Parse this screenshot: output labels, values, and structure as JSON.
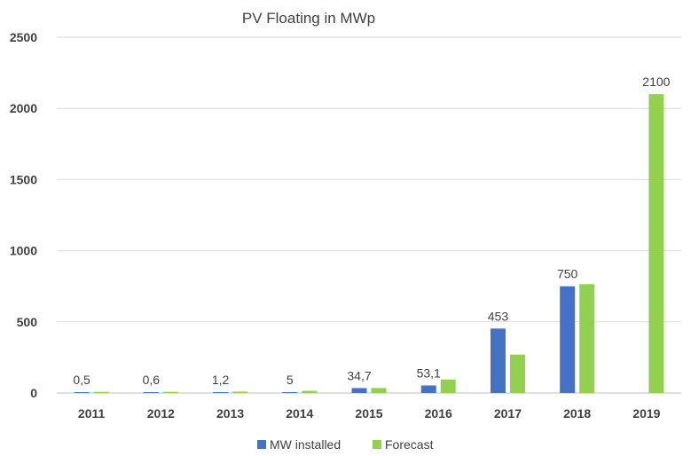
{
  "chart_data": {
    "type": "bar",
    "title": "PV Floating in MWp",
    "categories": [
      "2011",
      "2012",
      "2013",
      "2014",
      "2015",
      "2016",
      "2017",
      "2018",
      "2019"
    ],
    "series": [
      {
        "name": "MW installed",
        "color": "#4472C4",
        "values": [
          0.5,
          0.6,
          1.2,
          5,
          34.7,
          53.1,
          453,
          750,
          null
        ],
        "data_labels": [
          "0,5",
          "0,6",
          "1,2",
          "5",
          "34,7",
          "53,1",
          "453",
          "750",
          null
        ]
      },
      {
        "name": "Forecast",
        "color": "#92D050",
        "values": [
          8,
          8,
          10,
          15,
          35,
          95,
          270,
          765,
          2100
        ],
        "data_labels": [
          null,
          null,
          null,
          null,
          null,
          null,
          null,
          null,
          "2100"
        ]
      }
    ],
    "ylim": [
      0,
      2500
    ],
    "yticks": [
      "0",
      "500",
      "1000",
      "1500",
      "2000",
      "2500"
    ],
    "grid": true,
    "legend": "bottom"
  }
}
